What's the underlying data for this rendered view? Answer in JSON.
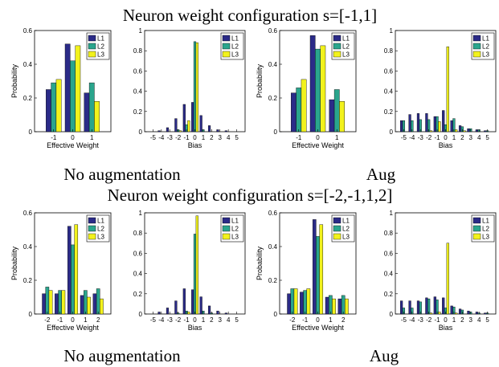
{
  "titles": [
    "Neuron weight configuration s=[-1,1]",
    "Neuron weight configuration s=[-2,-1,1,2]"
  ],
  "captions": [
    "No augmentation",
    "Aug",
    "No augmentation",
    "Aug"
  ],
  "colors": {
    "L1": "#2b2b88",
    "L2": "#2aa58d",
    "L3": "#f2f21c"
  },
  "chart_data": [
    {
      "type": "bar",
      "group": "s=[-1,1]",
      "variant": "No augmentation",
      "categories": [
        "-1",
        "0",
        "1"
      ],
      "xlabel": "Effective Weight",
      "ylabel": "Probability",
      "ylim": [
        0,
        0.6
      ],
      "yticks": [
        "0",
        "0.2",
        "0.4",
        "0.6"
      ],
      "legend": "top-right",
      "series": [
        {
          "name": "L1",
          "values": [
            0.25,
            0.52,
            0.23
          ]
        },
        {
          "name": "L2",
          "values": [
            0.29,
            0.42,
            0.29
          ]
        },
        {
          "name": "L3",
          "values": [
            0.31,
            0.51,
            0.18
          ]
        }
      ]
    },
    {
      "type": "bar",
      "group": "s=[-1,1]",
      "variant": "No augmentation",
      "categories": [
        "-5",
        "-4",
        "-3",
        "-2",
        "-1",
        "0",
        "1",
        "2",
        "3",
        "4",
        "5"
      ],
      "xlabel": "Bias",
      "ylabel": "",
      "ylim": [
        0,
        1
      ],
      "yticks": [
        "0",
        "0.2",
        "0.4",
        "0.6",
        "0.8",
        "1"
      ],
      "legend": "top-right",
      "series": [
        {
          "name": "L1",
          "values": [
            0.0,
            0.01,
            0.04,
            0.13,
            0.27,
            0.29,
            0.16,
            0.06,
            0.02,
            0.01,
            0.0
          ]
        },
        {
          "name": "L2",
          "values": [
            0.0,
            0.0,
            0.0,
            0.02,
            0.07,
            0.89,
            0.02,
            0.0,
            0.0,
            0.0,
            0.0
          ]
        },
        {
          "name": "L3",
          "values": [
            0.0,
            0.0,
            0.0,
            0.01,
            0.11,
            0.88,
            0.0,
            0.0,
            0.0,
            0.0,
            0.0
          ]
        }
      ]
    },
    {
      "type": "bar",
      "group": "s=[-1,1]",
      "variant": "Aug",
      "categories": [
        "-1",
        "0",
        "1"
      ],
      "xlabel": "Effective Weight",
      "ylabel": "Probability",
      "ylim": [
        0,
        0.6
      ],
      "yticks": [
        "0",
        "0.2",
        "0.4",
        "0.6"
      ],
      "legend": "top-right",
      "series": [
        {
          "name": "L1",
          "values": [
            0.23,
            0.57,
            0.19
          ]
        },
        {
          "name": "L2",
          "values": [
            0.26,
            0.49,
            0.25
          ]
        },
        {
          "name": "L3",
          "values": [
            0.31,
            0.51,
            0.18
          ]
        }
      ]
    },
    {
      "type": "bar",
      "group": "s=[-1,1]",
      "variant": "Aug",
      "categories": [
        "-5",
        "-4",
        "-3",
        "-2",
        "-1",
        "0",
        "1",
        "2",
        "3",
        "4",
        "5"
      ],
      "xlabel": "Bias",
      "ylabel": "",
      "ylim": [
        0,
        1
      ],
      "yticks": [
        "0",
        "0.2",
        "0.4",
        "0.6",
        "0.8",
        "1"
      ],
      "legend": "top-right",
      "series": [
        {
          "name": "L1",
          "values": [
            0.11,
            0.17,
            0.18,
            0.18,
            0.15,
            0.21,
            0.11,
            0.06,
            0.03,
            0.02,
            0.01
          ]
        },
        {
          "name": "L2",
          "values": [
            0.11,
            0.11,
            0.12,
            0.12,
            0.15,
            0.07,
            0.13,
            0.05,
            0.03,
            0.02,
            0.01
          ]
        },
        {
          "name": "L3",
          "values": [
            0.0,
            0.0,
            0.0,
            0.01,
            0.1,
            0.84,
            0.02,
            0.01,
            0.0,
            0.0,
            0.0
          ]
        }
      ]
    },
    {
      "type": "bar",
      "group": "s=[-2,-1,1,2]",
      "variant": "No augmentation",
      "categories": [
        "-2",
        "-1",
        "0",
        "1",
        "2"
      ],
      "xlabel": "Effective Weight",
      "ylabel": "Probability",
      "ylim": [
        0,
        0.6
      ],
      "yticks": [
        "0",
        "0.2",
        "0.4",
        "0.6"
      ],
      "legend": "top-right",
      "series": [
        {
          "name": "L1",
          "values": [
            0.12,
            0.12,
            0.52,
            0.11,
            0.12
          ]
        },
        {
          "name": "L2",
          "values": [
            0.16,
            0.14,
            0.41,
            0.14,
            0.15
          ]
        },
        {
          "name": "L3",
          "values": [
            0.14,
            0.14,
            0.53,
            0.1,
            0.09
          ]
        }
      ]
    },
    {
      "type": "bar",
      "group": "s=[-2,-1,1,2]",
      "variant": "No augmentation",
      "categories": [
        "-5",
        "-4",
        "-3",
        "-2",
        "-1",
        "0",
        "1",
        "2",
        "3",
        "4",
        "5"
      ],
      "xlabel": "Bias",
      "ylabel": "",
      "ylim": [
        0,
        1
      ],
      "yticks": [
        "0",
        "0.2",
        "0.4",
        "0.6",
        "0.8",
        "1"
      ],
      "legend": "top-right",
      "series": [
        {
          "name": "L1",
          "values": [
            0.0,
            0.02,
            0.06,
            0.13,
            0.25,
            0.24,
            0.17,
            0.08,
            0.03,
            0.01,
            0.0
          ]
        },
        {
          "name": "L2",
          "values": [
            0.0,
            0.0,
            0.0,
            0.01,
            0.03,
            0.79,
            0.03,
            0.01,
            0.0,
            0.0,
            0.0
          ]
        },
        {
          "name": "L3",
          "values": [
            0.0,
            0.0,
            0.0,
            0.0,
            0.02,
            0.97,
            0.0,
            0.0,
            0.0,
            0.0,
            0.0
          ]
        }
      ]
    },
    {
      "type": "bar",
      "group": "s=[-2,-1,1,2]",
      "variant": "Aug",
      "categories": [
        "-2",
        "-1",
        "0",
        "1",
        "2"
      ],
      "xlabel": "Effective Weight",
      "ylabel": "Probability",
      "ylim": [
        0,
        0.6
      ],
      "yticks": [
        "0",
        "0.2",
        "0.4",
        "0.6"
      ],
      "legend": "top-right",
      "series": [
        {
          "name": "L1",
          "values": [
            0.12,
            0.13,
            0.56,
            0.1,
            0.09
          ]
        },
        {
          "name": "L2",
          "values": [
            0.15,
            0.14,
            0.46,
            0.11,
            0.11
          ]
        },
        {
          "name": "L3",
          "values": [
            0.15,
            0.15,
            0.53,
            0.09,
            0.09
          ]
        }
      ]
    },
    {
      "type": "bar",
      "group": "s=[-2,-1,1,2]",
      "variant": "Aug",
      "categories": [
        "-5",
        "-4",
        "-3",
        "-2",
        "-1",
        "0",
        "1",
        "2",
        "3",
        "4",
        "5"
      ],
      "xlabel": "Bias",
      "ylabel": "",
      "ylim": [
        0,
        1
      ],
      "yticks": [
        "0",
        "0.2",
        "0.4",
        "0.6",
        "0.8",
        "1"
      ],
      "legend": "top-right",
      "series": [
        {
          "name": "L1",
          "values": [
            0.13,
            0.13,
            0.13,
            0.16,
            0.17,
            0.16,
            0.08,
            0.05,
            0.03,
            0.02,
            0.01
          ]
        },
        {
          "name": "L2",
          "values": [
            0.06,
            0.06,
            0.12,
            0.15,
            0.14,
            0.06,
            0.07,
            0.04,
            0.02,
            0.01,
            0.01
          ]
        },
        {
          "name": "L3",
          "values": [
            0.0,
            0.0,
            0.0,
            0.01,
            0.02,
            0.7,
            0.01,
            0.0,
            0.0,
            0.0,
            0.0
          ]
        }
      ]
    }
  ]
}
